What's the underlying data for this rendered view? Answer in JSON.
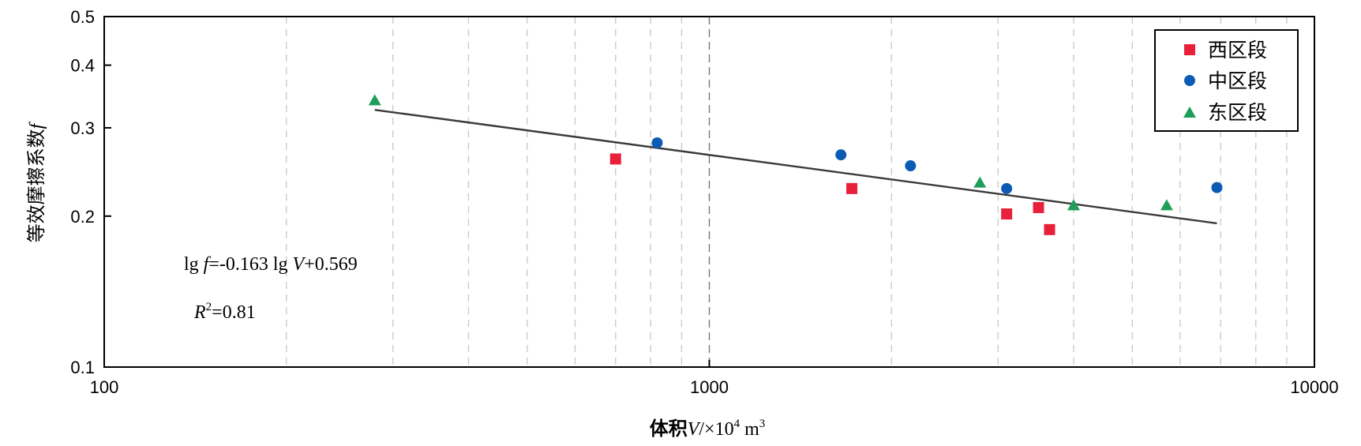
{
  "chart_data": {
    "type": "scatter",
    "xscale": "log",
    "yscale": "log",
    "xlim": [
      100,
      10000
    ],
    "ylim": [
      0.1,
      0.5
    ],
    "xticks": [
      100,
      1000,
      10000
    ],
    "xtick_labels": [
      "100",
      "1000",
      "10000"
    ],
    "yticks": [
      0.1,
      0.2,
      0.3,
      0.4,
      0.5
    ],
    "ytick_labels": [
      "0.1",
      "0.2",
      "0.3",
      "0.4",
      "0.5"
    ],
    "xlabel": {
      "cn": "体积",
      "var": "V",
      "unit": "/×10",
      "sup": "4",
      "unit2": " m",
      "sup2": "3"
    },
    "ylabel": {
      "cn": "等效摩擦系数",
      "var": "f"
    },
    "grid": "vertical dashed",
    "legend_position": "top-right",
    "series": [
      {
        "name": "西区段",
        "marker": "square",
        "color": "#e8203a",
        "points": [
          [
            700,
            0.26
          ],
          [
            1720,
            0.227
          ],
          [
            3100,
            0.202
          ],
          [
            3500,
            0.208
          ],
          [
            3650,
            0.188
          ]
        ]
      },
      {
        "name": "中区段",
        "marker": "circle",
        "color": "#0b5bb5",
        "points": [
          [
            820,
            0.28
          ],
          [
            1650,
            0.265
          ],
          [
            2150,
            0.252
          ],
          [
            3100,
            0.227
          ],
          [
            6900,
            0.228
          ]
        ]
      },
      {
        "name": "东区段",
        "marker": "triangle",
        "color": "#1e9e5a",
        "points": [
          [
            280,
            0.34
          ],
          [
            2800,
            0.233
          ],
          [
            4000,
            0.21
          ],
          [
            5700,
            0.21
          ]
        ]
      }
    ],
    "fit_line": {
      "x": [
        280,
        6900
      ],
      "y": [
        0.3258,
        0.1935
      ],
      "color": "#3a3a3a"
    },
    "annotations": {
      "equation": {
        "p1": "lg ",
        "v1": "f",
        "p2": "=-0.163 lg ",
        "v2": "V",
        "p3": "+0.569"
      },
      "r2": {
        "v": "R",
        "sup": "2",
        "rest": "=0.81"
      }
    }
  }
}
